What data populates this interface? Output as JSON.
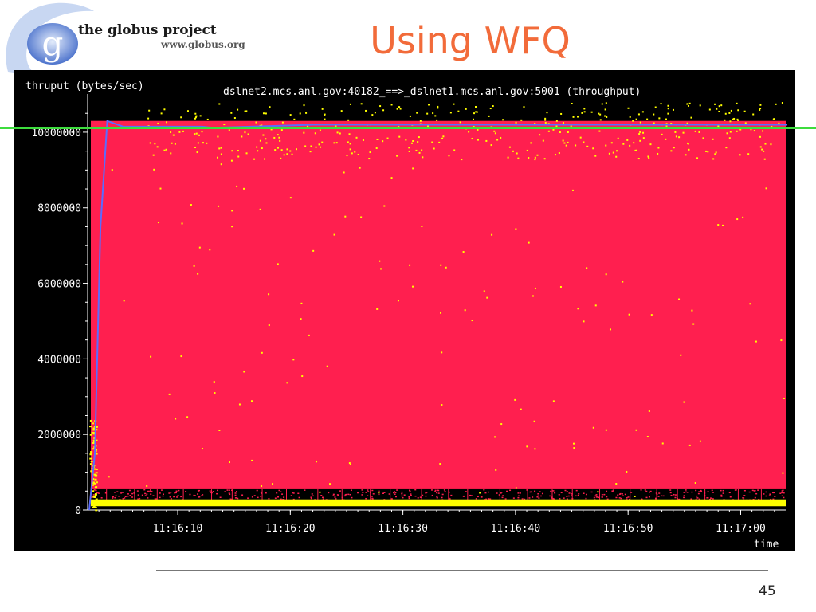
{
  "slide": {
    "title": "Using WFQ",
    "page_number": "45",
    "logo": {
      "org_name": "the globus project",
      "url_text": "www.globus.org"
    }
  },
  "chart_data": {
    "type": "scatter",
    "title": "dslnet2.mcs.anl.gov:40182_==>_dslnet1.mcs.anl.gov:5001 (throughput)",
    "ylabel": "thruput (bytes/sec)",
    "xlabel": "time",
    "x_ticks": [
      "11:16:10",
      "11:16:20",
      "11:16:30",
      "11:16:40",
      "11:16:50",
      "11:17:00"
    ],
    "y_ticks": [
      "0",
      "2000000",
      "4000000",
      "6000000",
      "8000000",
      "10000000"
    ],
    "ylim": [
      0,
      10800000
    ],
    "xlim": [
      "11:16:02",
      "11:17:04"
    ],
    "grid": false,
    "colors": {
      "background": "#000000",
      "samples": "#ff1f4f",
      "low_points": "#ffff00",
      "average": "#5a6cff",
      "reference": "#3ddc3d"
    },
    "series": [
      {
        "description": "red per-packet throughput samples spanning 0 to about 10,300,000 bytes/sec"
      },
      {
        "description": "yellow points clustered near 200,000 bytes/sec with scatter up to 10,800,000"
      },
      {
        "description": "blue average throughput, rising at start then holding near 10,200,000 bytes/sec"
      }
    ],
    "reference_line": {
      "y": 10300000
    }
  }
}
